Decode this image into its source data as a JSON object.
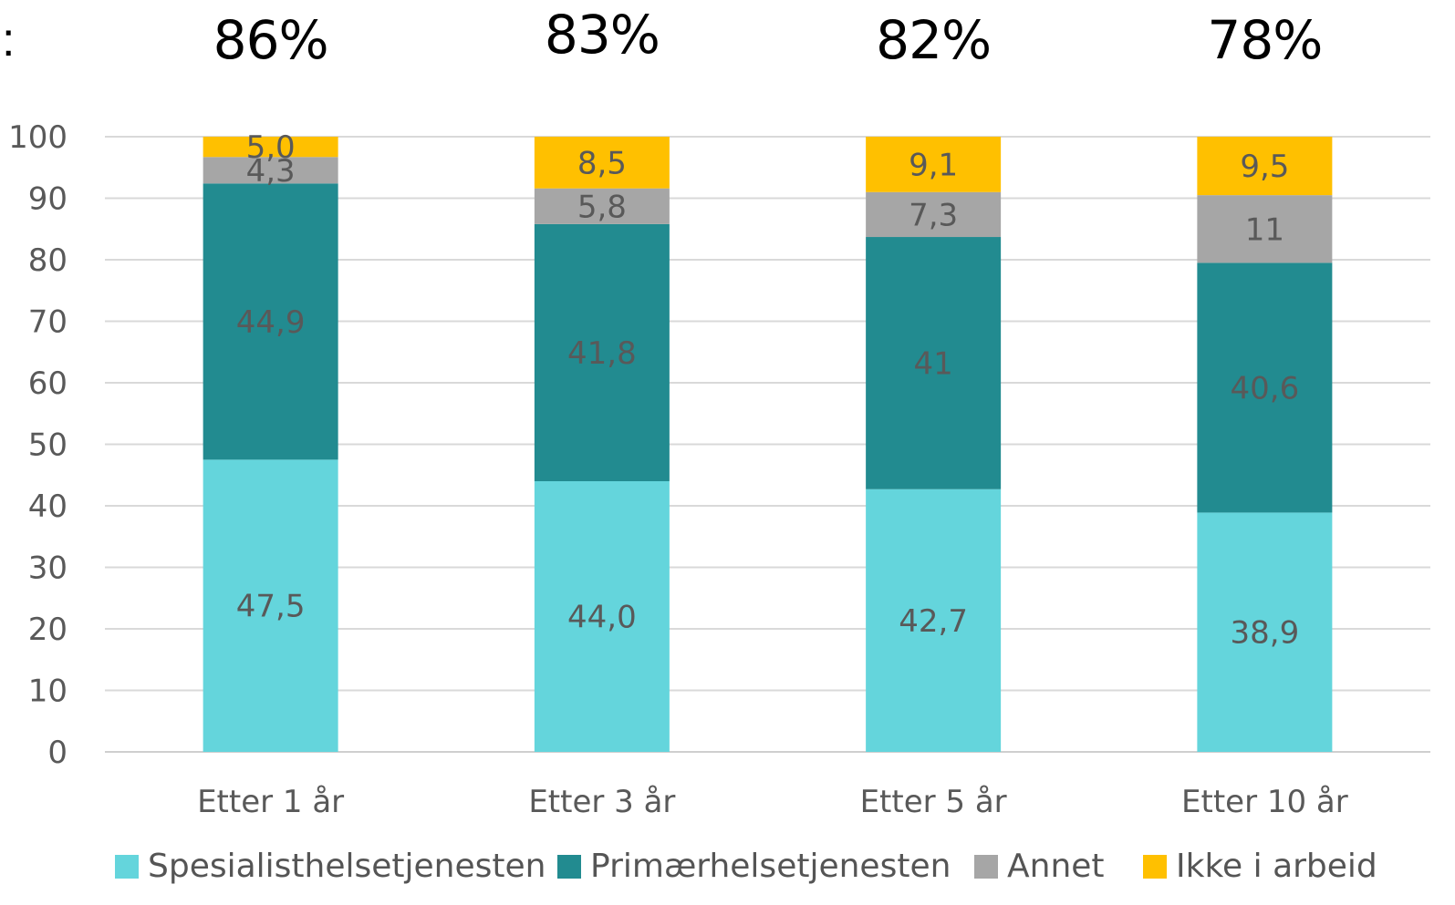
{
  "colon_fragment": ":",
  "chart_data": {
    "type": "bar",
    "stacked": true,
    "categories": [
      "Etter 1 år",
      "Etter 3 år",
      "Etter 5 år",
      "Etter 10 år"
    ],
    "top_labels": [
      "86%",
      "83%",
      "82%",
      "78%"
    ],
    "series": [
      {
        "name": "Spesialisthelsetjenesten",
        "values": [
          47.5,
          44.0,
          42.7,
          38.9
        ],
        "labels": [
          "47,5",
          "44,0",
          "42,7",
          "38,9"
        ],
        "color": "#64D5DC"
      },
      {
        "name": "Primærhelsetjenesten",
        "values": [
          44.9,
          41.8,
          41,
          40.6
        ],
        "labels": [
          "44,9",
          "41,8",
          "41",
          "40,6"
        ],
        "color": "#228B90"
      },
      {
        "name": "Annet",
        "values": [
          4.3,
          5.8,
          7.3,
          11
        ],
        "labels": [
          "4,3",
          "5,8",
          "7,3",
          "11"
        ],
        "color": "#A6A6A6"
      },
      {
        "name": "Ikke i arbeid",
        "values": [
          5.0,
          8.5,
          9.1,
          9.5
        ],
        "labels": [
          "5,0",
          "8,5",
          "9,1",
          "9,5"
        ],
        "color": "#FFC000"
      }
    ],
    "yticks": [
      0,
      10,
      20,
      30,
      40,
      50,
      60,
      70,
      80,
      90,
      100
    ],
    "ylim": [
      0,
      100
    ],
    "grid": true,
    "legend": "bottom"
  }
}
